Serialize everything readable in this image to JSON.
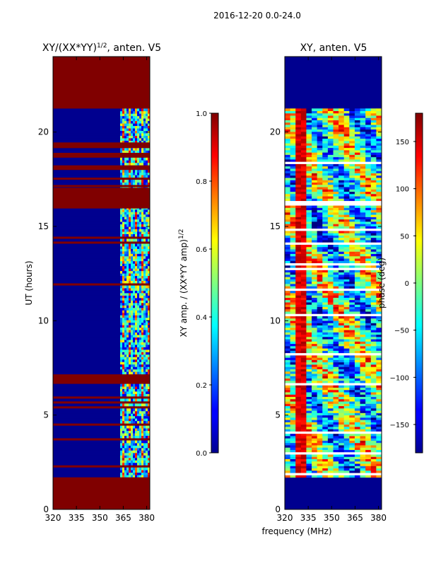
{
  "figure_title": "2016-12-20 0.0-24.0",
  "shared_xlabel": "frequency (MHz)",
  "colors": {
    "heat_low": "#00008f",
    "heat_high": "#800000",
    "background": "#ffffff"
  },
  "chart_data": [
    {
      "type": "heatmap",
      "title_main": "XY/(XX*YY)",
      "title_sup": "1/2",
      "title_rest": ", anten. V5",
      "xlabel": "",
      "ylabel": "UT (hours)",
      "xlim": [
        320,
        382
      ],
      "ylim": [
        0,
        24
      ],
      "xticks": [
        320,
        335,
        350,
        365,
        380
      ],
      "yticks": [
        0,
        5,
        10,
        15,
        20
      ],
      "data_coverage_hours": [
        1.7,
        21.25
      ],
      "bright_band_mhz": [
        363,
        382
      ],
      "flagged_blocks_hours": [
        [
          0,
          1.7
        ],
        [
          15.95,
          17.05
        ],
        [
          18.7,
          18.9
        ],
        [
          19.15,
          19.45
        ],
        [
          21.25,
          24
        ]
      ],
      "colorbar": {
        "label_main": "XY amp. / (XX*YY amp)",
        "label_sup": "1/2",
        "min": 0.0,
        "max": 1.0,
        "ticks": [
          "0.0",
          "0.2",
          "0.4",
          "0.6",
          "0.8",
          "1.0"
        ]
      }
    },
    {
      "type": "heatmap",
      "title_main": "XY, anten. V5",
      "title_sup": "",
      "title_rest": "",
      "xlabel": "frequency (MHz)",
      "ylabel": "",
      "xlim": [
        320,
        382
      ],
      "ylim": [
        0,
        24
      ],
      "xticks": [
        320,
        335,
        350,
        365,
        380
      ],
      "yticks": [
        0,
        5,
        10,
        15,
        20
      ],
      "data_coverage_hours": [
        1.7,
        21.25
      ],
      "colorbar": {
        "label_main": "phase (deg)",
        "label_sup": "",
        "min": -180,
        "max": 180,
        "ticks": [
          "−150",
          "−100",
          "−50",
          "0",
          "50",
          "100",
          "150"
        ]
      }
    }
  ]
}
